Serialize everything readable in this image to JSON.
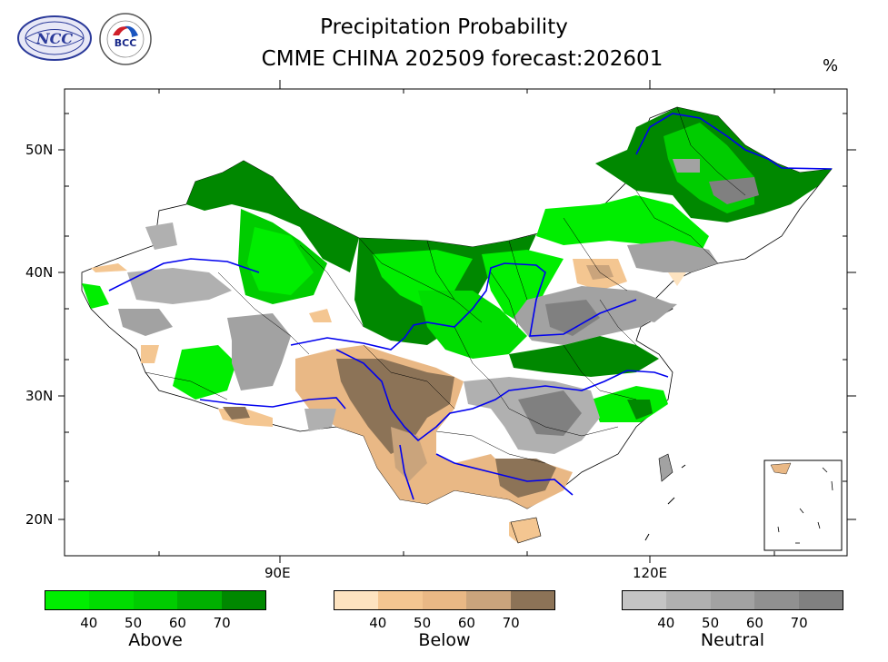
{
  "header": {
    "title_line1": "Precipitation Probability",
    "title_line2": "CMME CHINA 202509 forecast:202601",
    "unit": "%"
  },
  "logos": [
    {
      "name": "NCC",
      "text": "NCC"
    },
    {
      "name": "BCC",
      "text": "BCC"
    }
  ],
  "axes": {
    "y_labels": [
      "50N",
      "40N",
      "30N",
      "20N"
    ],
    "x_labels": [
      "90E",
      "120E"
    ]
  },
  "legends": [
    {
      "name": "Above",
      "ticks": [
        "40",
        "50",
        "60",
        "70"
      ],
      "colors": [
        "#00ee00",
        "#00dd00",
        "#00cc00",
        "#00b000",
        "#008800"
      ]
    },
    {
      "name": "Below",
      "ticks": [
        "40",
        "50",
        "60",
        "70"
      ],
      "colors": [
        "#fde3c0",
        "#f4c691",
        "#e9b885",
        "#caa47c",
        "#8c7357"
      ]
    },
    {
      "name": "Neutral",
      "ticks": [
        "40",
        "50",
        "60",
        "70"
      ],
      "colors": [
        "#c4c4c4",
        "#b0b0b0",
        "#a2a2a2",
        "#909090",
        "#808080"
      ]
    }
  ]
}
